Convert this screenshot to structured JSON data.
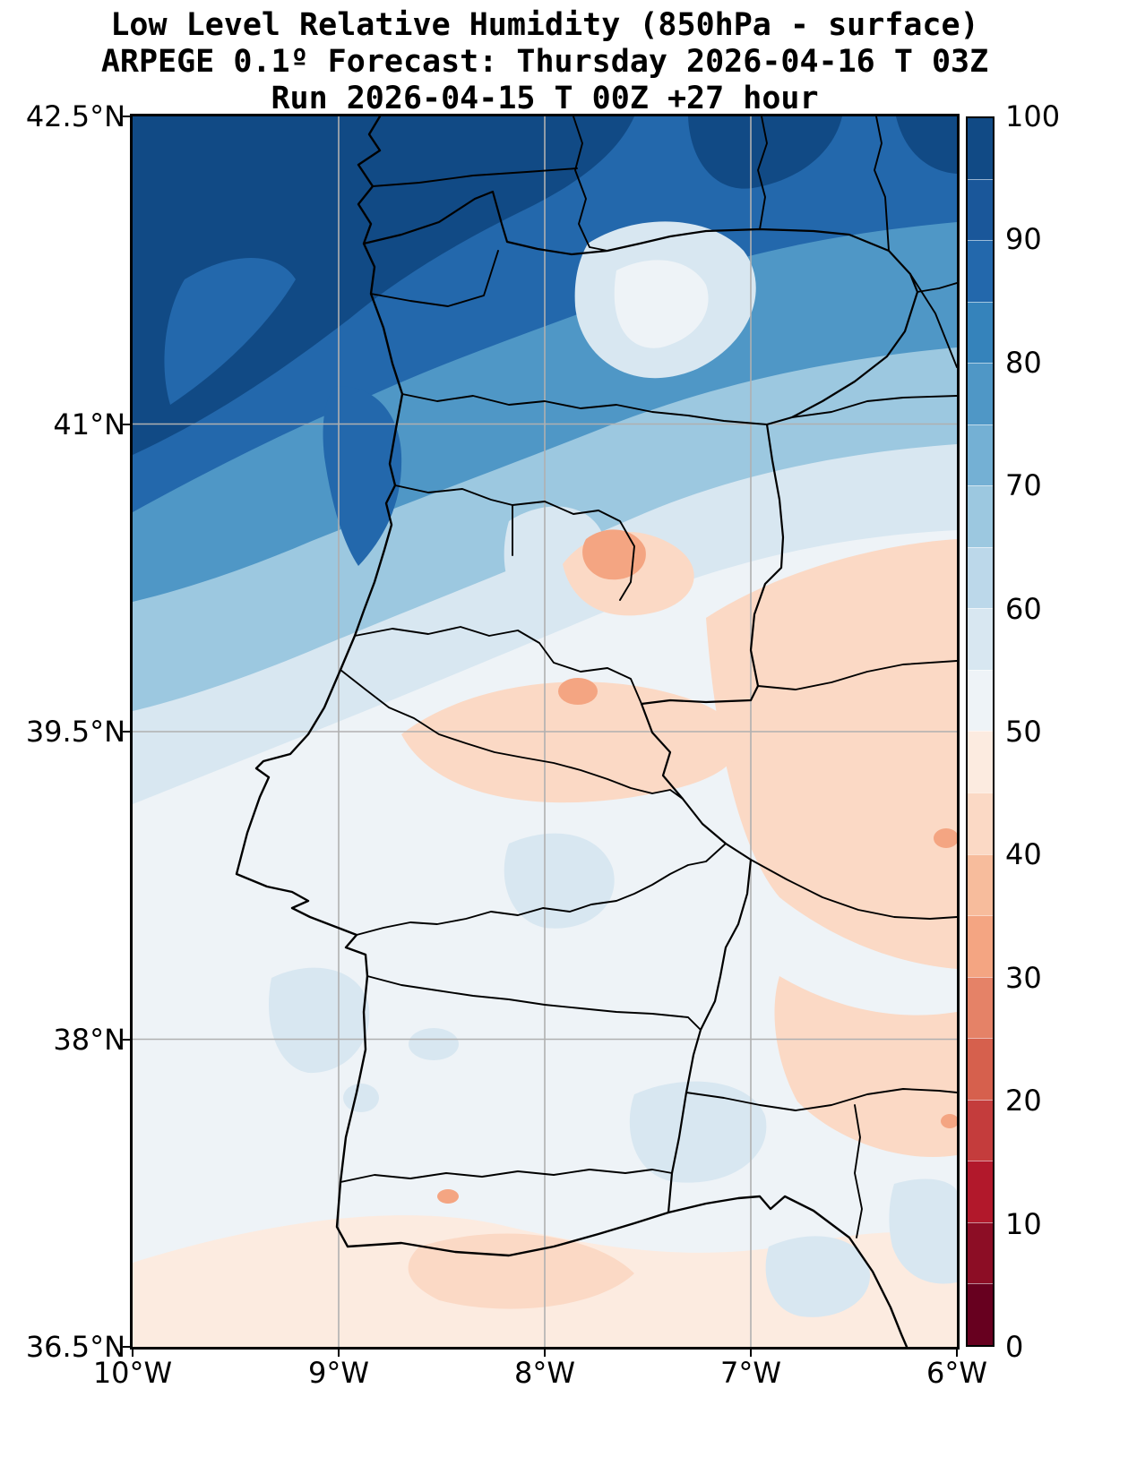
{
  "title": {
    "line1": "Low Level Relative Humidity (850hPa - surface)",
    "line2": "ARPEGE 0.1º Forecast: Thursday 2026-04-16 T 03Z",
    "line3": "Run 2026-04-15 T 00Z +27 hour"
  },
  "axes": {
    "y_ticks": [
      "42.5°N",
      "41°N",
      "39.5°N",
      "38°N",
      "36.5°N"
    ],
    "x_ticks": [
      "10°W",
      "9°W",
      "8°W",
      "7°W",
      "6°W"
    ]
  },
  "colorbar": {
    "tick_labels": [
      "100",
      "90",
      "80",
      "70",
      "60",
      "50",
      "40",
      "30",
      "20",
      "10",
      "0"
    ],
    "palette_bottom_to_top": [
      "#67001f",
      "#8c0d25",
      "#b2182b",
      "#c43c3c",
      "#d6604d",
      "#e58267",
      "#f4a582",
      "#f7bc9c",
      "#fbd9c5",
      "#fcebe0",
      "#eef3f7",
      "#d8e7f1",
      "#bcd8ea",
      "#9cc8e0",
      "#74b0d4",
      "#4f97c6",
      "#3583bb",
      "#2368ac",
      "#1a579a",
      "#114a85"
    ]
  },
  "map": {
    "boundary_color": "#000000",
    "grid_color": "#b0b0b0",
    "background": "#ffffff"
  },
  "chart_data": {
    "type": "heatmap",
    "variable": "Low Level Relative Humidity (850hPa - surface)",
    "model": "ARPEGE 0.1º",
    "valid_time": "Thursday 2026-04-16 T 03Z",
    "run_time": "2026-04-15 T 00Z",
    "forecast_hour": 27,
    "lat_range_n": [
      36.5,
      42.5
    ],
    "lon_range_w": [
      10,
      6
    ],
    "levels": [
      0,
      10,
      20,
      30,
      40,
      50,
      60,
      70,
      80,
      90,
      100
    ],
    "summary": "85-100% over the NW Atlantic, Galicia and N Portugal; 60-80% across N interior Iberia; 45-60% over central and S Portugal and SW Spain; scattered 30-45% pockets in the central-east and along the SE edge"
  }
}
